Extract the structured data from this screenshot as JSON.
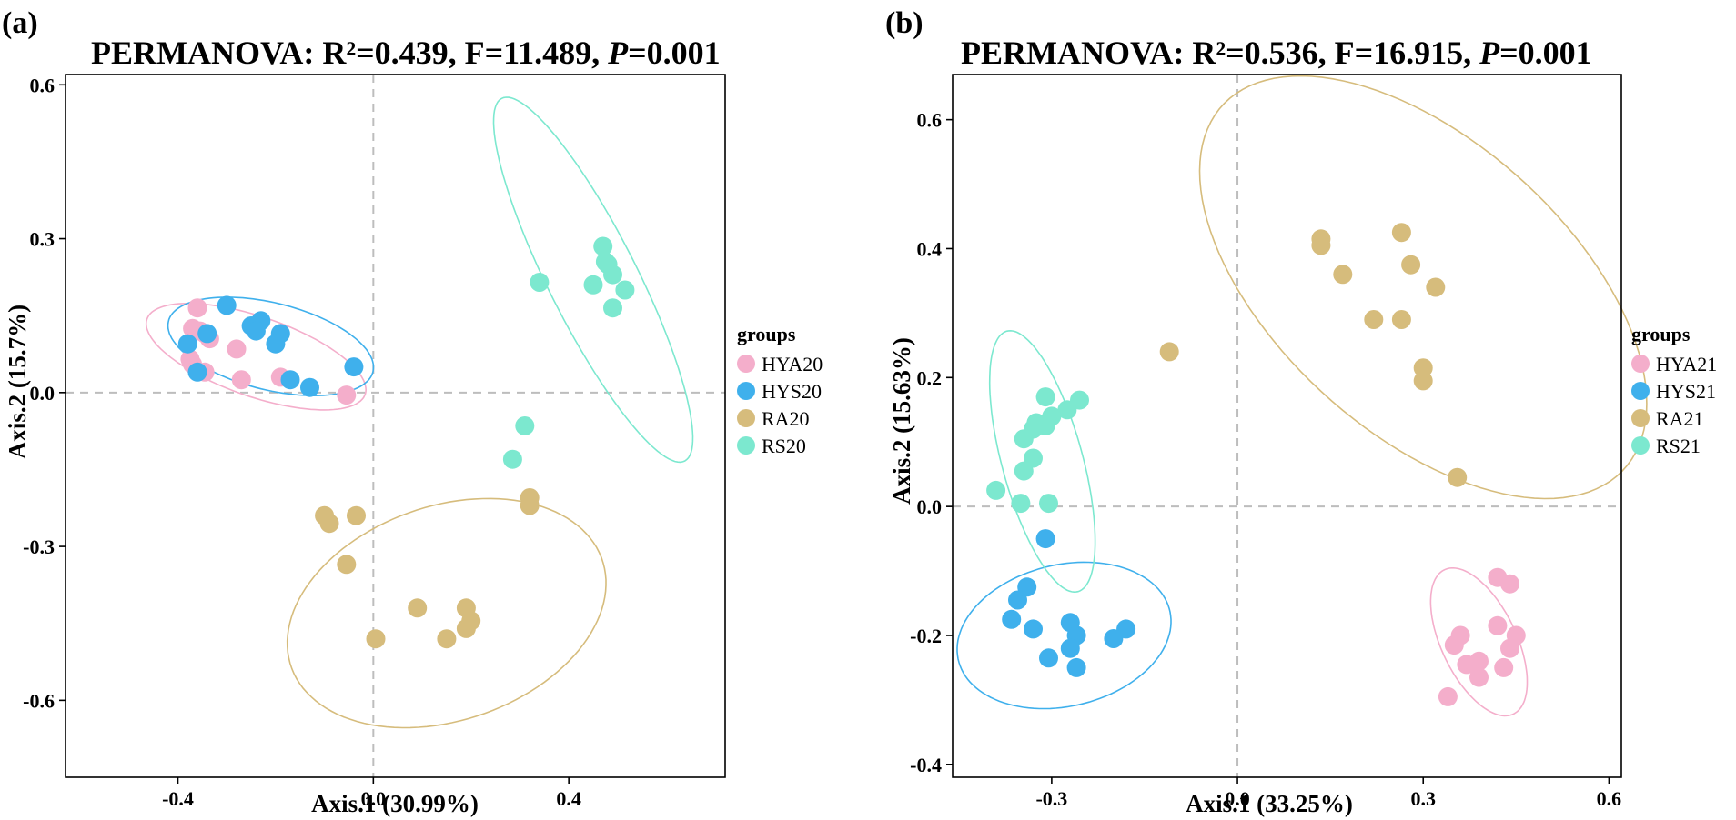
{
  "chart_data": [
    {
      "type": "scatter",
      "panel_label": "(a)",
      "title": {
        "prefix": "PERMANOVA: R²=0.439, F=11.489, ",
        "p_symbol": "P",
        "p_value": "=0.001"
      },
      "xlabel": "Axis.1 (30.99%)",
      "ylabel": "Axis.2 (15.7%)",
      "xlim": [
        -0.63,
        0.72
      ],
      "ylim": [
        -0.75,
        0.62
      ],
      "xticks": [
        -0.4,
        0.0,
        0.4
      ],
      "xtick_labels": [
        "-0.4",
        "0.0",
        "0.4"
      ],
      "yticks": [
        -0.6,
        -0.3,
        0.0,
        0.3,
        0.6
      ],
      "ytick_labels": [
        "-0.6",
        "-0.3",
        "0.0",
        "0.3",
        "0.6"
      ],
      "reference_lines": {
        "x": 0,
        "y": 0
      },
      "legend": {
        "title": "groups",
        "position": "right"
      },
      "series": [
        {
          "name": "HYA20",
          "color": "#F4AECB",
          "points": [
            [
              -0.36,
              0.165
            ],
            [
              -0.37,
              0.125
            ],
            [
              -0.355,
              0.12
            ],
            [
              -0.345,
              0.115
            ],
            [
              -0.335,
              0.105
            ],
            [
              -0.375,
              0.065
            ],
            [
              -0.37,
              0.055
            ],
            [
              -0.345,
              0.04
            ],
            [
              -0.28,
              0.085
            ],
            [
              -0.27,
              0.025
            ],
            [
              -0.19,
              0.03
            ],
            [
              -0.055,
              -0.005
            ]
          ],
          "ellipse": {
            "cx": -0.24,
            "cy": 0.07,
            "rx": 0.235,
            "ry": 0.078,
            "angle_deg": -18
          }
        },
        {
          "name": "HYS20",
          "color": "#3FB0EC",
          "points": [
            [
              -0.3,
              0.17
            ],
            [
              -0.23,
              0.14
            ],
            [
              -0.25,
              0.13
            ],
            [
              -0.24,
              0.12
            ],
            [
              -0.19,
              0.115
            ],
            [
              -0.2,
              0.095
            ],
            [
              -0.38,
              0.095
            ],
            [
              -0.34,
              0.115
            ],
            [
              -0.36,
              0.04
            ],
            [
              -0.17,
              0.025
            ],
            [
              -0.13,
              0.01
            ],
            [
              -0.04,
              0.05
            ]
          ],
          "ellipse": {
            "cx": -0.21,
            "cy": 0.09,
            "rx": 0.215,
            "ry": 0.085,
            "angle_deg": -13
          }
        },
        {
          "name": "RA20",
          "color": "#D6BC7C",
          "points": [
            [
              -0.1,
              -0.24
            ],
            [
              -0.09,
              -0.255
            ],
            [
              -0.035,
              -0.24
            ],
            [
              -0.055,
              -0.335
            ],
            [
              0.09,
              -0.42
            ],
            [
              0.19,
              -0.42
            ],
            [
              0.2,
              -0.445
            ],
            [
              0.19,
              -0.46
            ],
            [
              0.15,
              -0.48
            ],
            [
              0.005,
              -0.48
            ],
            [
              0.32,
              -0.205
            ],
            [
              0.32,
              -0.22
            ]
          ],
          "ellipse": {
            "cx": 0.15,
            "cy": -0.43,
            "rx": 0.335,
            "ry": 0.21,
            "angle_deg": 17
          }
        },
        {
          "name": "RS20",
          "color": "#7CE8CF",
          "points": [
            [
              0.34,
              0.215
            ],
            [
              0.47,
              0.285
            ],
            [
              0.475,
              0.255
            ],
            [
              0.48,
              0.25
            ],
            [
              0.49,
              0.23
            ],
            [
              0.45,
              0.21
            ],
            [
              0.515,
              0.2
            ],
            [
              0.49,
              0.165
            ],
            [
              0.31,
              -0.065
            ],
            [
              0.285,
              -0.13
            ]
          ],
          "ellipse": {
            "cx": 0.45,
            "cy": 0.22,
            "rx": 0.4,
            "ry": 0.09,
            "angle_deg": -62
          }
        }
      ]
    },
    {
      "type": "scatter",
      "panel_label": "(b)",
      "title": {
        "prefix": "PERMANOVA: R²=0.536, F=16.915, ",
        "p_symbol": "P",
        "p_value": "=0.001"
      },
      "xlabel": "Axis.1 (33.25%)",
      "ylabel": "Axis.2 (15.63%)",
      "xlim": [
        -0.46,
        0.62
      ],
      "ylim": [
        -0.42,
        0.67
      ],
      "xticks": [
        -0.3,
        0.0,
        0.3,
        0.6
      ],
      "xtick_labels": [
        "-0.3",
        "0.0",
        "0.3",
        "0.6"
      ],
      "yticks": [
        -0.4,
        -0.2,
        0.0,
        0.2,
        0.4,
        0.6
      ],
      "ytick_labels": [
        "-0.4",
        "-0.2",
        "0.0",
        "0.2",
        "0.4",
        "0.6"
      ],
      "reference_lines": {
        "x": 0,
        "y": 0
      },
      "legend": {
        "title": "groups",
        "position": "right"
      },
      "series": [
        {
          "name": "HYA21",
          "color": "#F4AECB",
          "points": [
            [
              0.42,
              -0.11
            ],
            [
              0.44,
              -0.12
            ],
            [
              0.42,
              -0.185
            ],
            [
              0.45,
              -0.2
            ],
            [
              0.36,
              -0.2
            ],
            [
              0.35,
              -0.215
            ],
            [
              0.44,
              -0.22
            ],
            [
              0.39,
              -0.24
            ],
            [
              0.37,
              -0.245
            ],
            [
              0.43,
              -0.25
            ],
            [
              0.39,
              -0.265
            ],
            [
              0.34,
              -0.295
            ]
          ],
          "ellipse": {
            "cx": 0.39,
            "cy": -0.21,
            "rx": 0.125,
            "ry": 0.06,
            "angle_deg": -63
          }
        },
        {
          "name": "HYS21",
          "color": "#3FB0EC",
          "points": [
            [
              -0.31,
              -0.05
            ],
            [
              -0.34,
              -0.125
            ],
            [
              -0.355,
              -0.145
            ],
            [
              -0.365,
              -0.175
            ],
            [
              -0.33,
              -0.19
            ],
            [
              -0.27,
              -0.18
            ],
            [
              -0.26,
              -0.2
            ],
            [
              -0.18,
              -0.19
            ],
            [
              -0.2,
              -0.205
            ],
            [
              -0.27,
              -0.22
            ],
            [
              -0.305,
              -0.235
            ],
            [
              -0.26,
              -0.25
            ]
          ],
          "ellipse": {
            "cx": -0.28,
            "cy": -0.2,
            "rx": 0.175,
            "ry": 0.11,
            "angle_deg": 12
          }
        },
        {
          "name": "RA21",
          "color": "#D6BC7C",
          "points": [
            [
              0.135,
              0.415
            ],
            [
              0.135,
              0.405
            ],
            [
              0.265,
              0.425
            ],
            [
              0.28,
              0.375
            ],
            [
              0.17,
              0.36
            ],
            [
              0.32,
              0.34
            ],
            [
              0.22,
              0.29
            ],
            [
              0.265,
              0.29
            ],
            [
              0.3,
              0.215
            ],
            [
              0.3,
              0.195
            ],
            [
              -0.11,
              0.24
            ],
            [
              0.355,
              0.045
            ]
          ],
          "ellipse": {
            "cx": 0.3,
            "cy": 0.34,
            "rx": 0.43,
            "ry": 0.23,
            "angle_deg": -40
          }
        },
        {
          "name": "RS21",
          "color": "#7CE8CF",
          "points": [
            [
              -0.31,
              0.17
            ],
            [
              -0.255,
              0.165
            ],
            [
              -0.275,
              0.15
            ],
            [
              -0.3,
              0.14
            ],
            [
              -0.325,
              0.13
            ],
            [
              -0.31,
              0.125
            ],
            [
              -0.33,
              0.12
            ],
            [
              -0.345,
              0.105
            ],
            [
              -0.33,
              0.075
            ],
            [
              -0.345,
              0.055
            ],
            [
              -0.39,
              0.025
            ],
            [
              -0.35,
              0.005
            ],
            [
              -0.305,
              0.005
            ]
          ],
          "ellipse": {
            "cx": -0.315,
            "cy": 0.07,
            "rx": 0.21,
            "ry": 0.065,
            "angle_deg": -74
          }
        }
      ]
    }
  ]
}
